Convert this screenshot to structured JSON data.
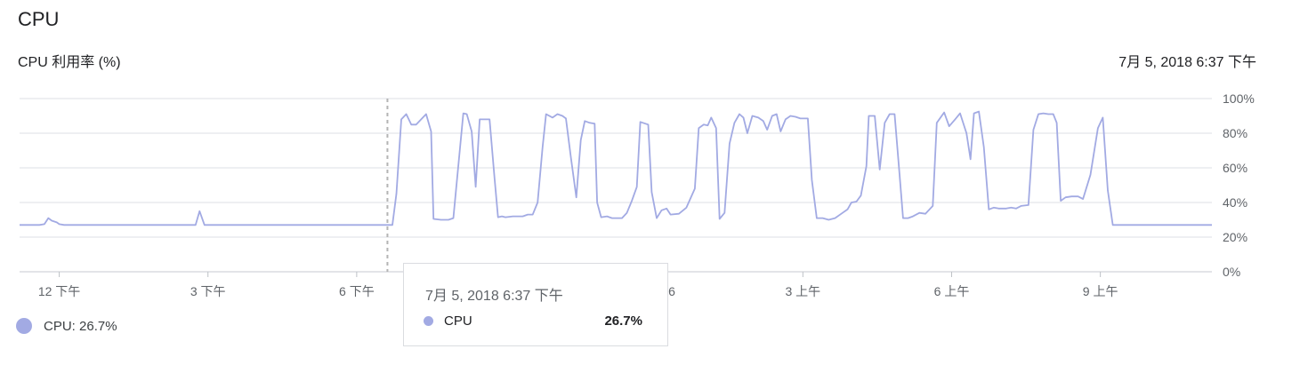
{
  "header": {
    "title": "CPU",
    "subtitle": "CPU 利用率 (%)",
    "timestamp": "7月 5, 2018 6:37 下午"
  },
  "legend": {
    "label": "CPU: 26.7%"
  },
  "tooltip": {
    "date": "7月 5, 2018 6:37 下午",
    "series_name": "CPU",
    "value": "26.7%"
  },
  "colors": {
    "series": "#a2aae3",
    "grid": "#e8eaed",
    "cursor": "#b4b4b4",
    "text": "#5f6368"
  },
  "chart_data": {
    "type": "line",
    "title": "CPU 利用率 (%)",
    "ylim": [
      0,
      100
    ],
    "y_ticks": [
      "0%",
      "20%",
      "40%",
      "60%",
      "80%",
      "100%"
    ],
    "x_ticks": [
      {
        "label": "12 下午",
        "h": 12
      },
      {
        "label": "3 下午",
        "h": 15
      },
      {
        "label": "6 下午",
        "h": 18
      },
      {
        "label": "周五 06",
        "h": 24
      },
      {
        "label": "3 上午",
        "h": 27
      },
      {
        "label": "6 上午",
        "h": 30
      },
      {
        "label": "9 上午",
        "h": 33
      }
    ],
    "x_range_hours": [
      11.2,
      35.25
    ],
    "cursor_hour": 18.62,
    "grid": true,
    "series": [
      {
        "name": "CPU",
        "points": [
          [
            11.2,
            27
          ],
          [
            11.6,
            27
          ],
          [
            11.7,
            27.5
          ],
          [
            11.78,
            31
          ],
          [
            11.85,
            29.5
          ],
          [
            11.95,
            28.5
          ],
          [
            12.0,
            27.5
          ],
          [
            12.1,
            27
          ],
          [
            14.0,
            27
          ],
          [
            14.5,
            27
          ],
          [
            14.75,
            27
          ],
          [
            14.83,
            35
          ],
          [
            14.93,
            27
          ],
          [
            15.5,
            27
          ],
          [
            17.0,
            27
          ],
          [
            18.72,
            27
          ],
          [
            18.8,
            45
          ],
          [
            18.9,
            88
          ],
          [
            19.0,
            91
          ],
          [
            19.1,
            85
          ],
          [
            19.2,
            85
          ],
          [
            19.3,
            88
          ],
          [
            19.4,
            91
          ],
          [
            19.5,
            81
          ],
          [
            19.55,
            30.5
          ],
          [
            19.7,
            30
          ],
          [
            19.85,
            30
          ],
          [
            19.95,
            31
          ],
          [
            20.15,
            91.5
          ],
          [
            20.22,
            91
          ],
          [
            20.32,
            81
          ],
          [
            20.4,
            49
          ],
          [
            20.48,
            88
          ],
          [
            20.6,
            88
          ],
          [
            20.68,
            88
          ],
          [
            20.78,
            54
          ],
          [
            20.85,
            31.5
          ],
          [
            20.93,
            32
          ],
          [
            21.0,
            31.5
          ],
          [
            21.15,
            32
          ],
          [
            21.35,
            32
          ],
          [
            21.45,
            33
          ],
          [
            21.55,
            33
          ],
          [
            21.65,
            40
          ],
          [
            21.75,
            72
          ],
          [
            21.82,
            91
          ],
          [
            21.95,
            89
          ],
          [
            22.05,
            91
          ],
          [
            22.15,
            90
          ],
          [
            22.22,
            88.5
          ],
          [
            22.32,
            66
          ],
          [
            22.43,
            43
          ],
          [
            22.52,
            76
          ],
          [
            22.6,
            87
          ],
          [
            22.7,
            86
          ],
          [
            22.8,
            85.5
          ],
          [
            22.85,
            40
          ],
          [
            22.93,
            31.5
          ],
          [
            23.05,
            32
          ],
          [
            23.15,
            31
          ],
          [
            23.35,
            31
          ],
          [
            23.45,
            34
          ],
          [
            23.55,
            41
          ],
          [
            23.65,
            49
          ],
          [
            23.72,
            86.5
          ],
          [
            23.88,
            85
          ],
          [
            23.95,
            46
          ],
          [
            24.05,
            31
          ],
          [
            24.15,
            35.5
          ],
          [
            24.25,
            36.5
          ],
          [
            24.33,
            33
          ],
          [
            24.5,
            33.5
          ],
          [
            24.65,
            37
          ],
          [
            24.82,
            48
          ],
          [
            24.9,
            83
          ],
          [
            25.0,
            85
          ],
          [
            25.08,
            84.5
          ],
          [
            25.15,
            89
          ],
          [
            25.25,
            83
          ],
          [
            25.32,
            30.5
          ],
          [
            25.42,
            34
          ],
          [
            25.52,
            74
          ],
          [
            25.62,
            86
          ],
          [
            25.72,
            91
          ],
          [
            25.8,
            89
          ],
          [
            25.88,
            80
          ],
          [
            25.98,
            90
          ],
          [
            26.1,
            89
          ],
          [
            26.2,
            87
          ],
          [
            26.28,
            82
          ],
          [
            26.38,
            90
          ],
          [
            26.47,
            91
          ],
          [
            26.55,
            81
          ],
          [
            26.65,
            88
          ],
          [
            26.75,
            90
          ],
          [
            26.85,
            89.5
          ],
          [
            26.95,
            88.5
          ],
          [
            27.1,
            88.5
          ],
          [
            27.18,
            53
          ],
          [
            27.28,
            31
          ],
          [
            27.4,
            31
          ],
          [
            27.52,
            30
          ],
          [
            27.65,
            31
          ],
          [
            27.8,
            34
          ],
          [
            27.9,
            36
          ],
          [
            27.98,
            40
          ],
          [
            28.08,
            40.5
          ],
          [
            28.17,
            44
          ],
          [
            28.28,
            61
          ],
          [
            28.33,
            90
          ],
          [
            28.45,
            90
          ],
          [
            28.55,
            59
          ],
          [
            28.65,
            86
          ],
          [
            28.75,
            91
          ],
          [
            28.85,
            91
          ],
          [
            28.95,
            56
          ],
          [
            29.02,
            31
          ],
          [
            29.12,
            31
          ],
          [
            29.22,
            32
          ],
          [
            29.35,
            34
          ],
          [
            29.47,
            33.5
          ],
          [
            29.62,
            38
          ],
          [
            29.7,
            86
          ],
          [
            29.85,
            92
          ],
          [
            29.95,
            84
          ],
          [
            30.07,
            88
          ],
          [
            30.17,
            91.5
          ],
          [
            30.3,
            80
          ],
          [
            30.38,
            65
          ],
          [
            30.45,
            91.5
          ],
          [
            30.55,
            92.5
          ],
          [
            30.65,
            72
          ],
          [
            30.75,
            36
          ],
          [
            30.85,
            37
          ],
          [
            30.95,
            36.5
          ],
          [
            31.1,
            36.5
          ],
          [
            31.2,
            37
          ],
          [
            31.3,
            36.5
          ],
          [
            31.4,
            38
          ],
          [
            31.55,
            38.5
          ],
          [
            31.65,
            82
          ],
          [
            31.75,
            91
          ],
          [
            31.85,
            91.5
          ],
          [
            31.95,
            91
          ],
          [
            32.05,
            91
          ],
          [
            32.12,
            86
          ],
          [
            32.2,
            41
          ],
          [
            32.3,
            43
          ],
          [
            32.42,
            43.5
          ],
          [
            32.55,
            43.5
          ],
          [
            32.65,
            42
          ],
          [
            32.8,
            56
          ],
          [
            32.95,
            83
          ],
          [
            33.05,
            89
          ],
          [
            33.15,
            47
          ],
          [
            33.25,
            27
          ],
          [
            33.4,
            27
          ],
          [
            34.5,
            27
          ],
          [
            35.25,
            27
          ]
        ]
      }
    ]
  }
}
